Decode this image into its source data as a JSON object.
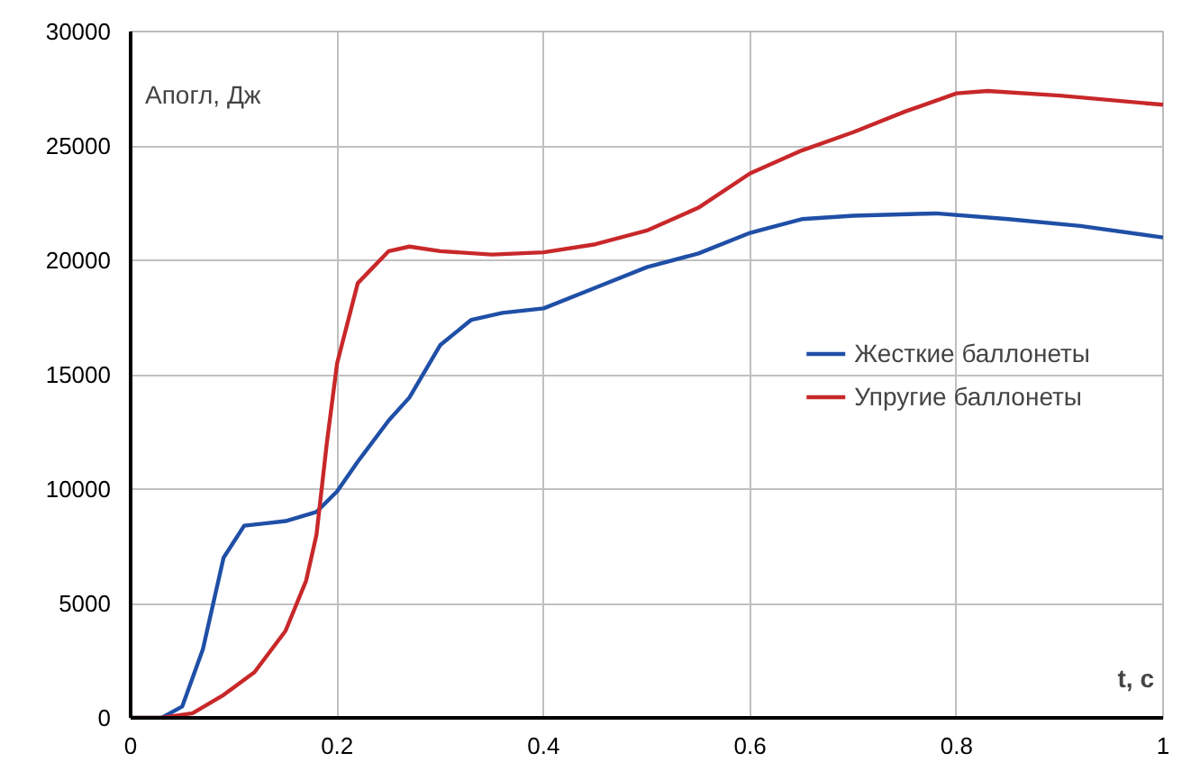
{
  "chart_data": {
    "type": "line",
    "xlabel": "t, с",
    "ylabel": "Aпогл, Дж",
    "xlim": [
      0,
      1
    ],
    "ylim": [
      0,
      30000
    ],
    "xticks": [
      0,
      0.2,
      0.4,
      0.6,
      0.8,
      1
    ],
    "yticks": [
      0,
      5000,
      10000,
      15000,
      20000,
      25000,
      30000
    ],
    "grid": true,
    "legend": "right",
    "line_style": "solid",
    "series": [
      {
        "name": "Жесткие баллонеты",
        "color": "#1f4fa6",
        "x": [
          0,
          0.03,
          0.05,
          0.07,
          0.09,
          0.11,
          0.13,
          0.15,
          0.18,
          0.2,
          0.22,
          0.25,
          0.27,
          0.3,
          0.33,
          0.36,
          0.4,
          0.45,
          0.5,
          0.55,
          0.6,
          0.65,
          0.7,
          0.78,
          0.85,
          0.92,
          1.0
        ],
        "values": [
          0,
          0,
          500,
          3000,
          7000,
          8400,
          8500,
          8600,
          9000,
          9900,
          11200,
          13000,
          14000,
          16300,
          17400,
          17700,
          17900,
          18800,
          19700,
          20300,
          21200,
          21800,
          21950,
          22050,
          21800,
          21500,
          21000
        ]
      },
      {
        "name": "Упругие баллонеты",
        "color": "#c8282a",
        "x": [
          0,
          0.03,
          0.06,
          0.09,
          0.12,
          0.15,
          0.17,
          0.18,
          0.19,
          0.2,
          0.22,
          0.25,
          0.27,
          0.3,
          0.35,
          0.4,
          0.45,
          0.5,
          0.55,
          0.6,
          0.65,
          0.7,
          0.75,
          0.8,
          0.83,
          0.9,
          1.0
        ],
        "values": [
          0,
          0,
          200,
          1000,
          2000,
          3800,
          6000,
          8000,
          12000,
          15500,
          19000,
          20400,
          20600,
          20400,
          20250,
          20350,
          20700,
          21300,
          22300,
          23800,
          24800,
          25600,
          26500,
          27300,
          27400,
          27200,
          26800
        ]
      }
    ]
  }
}
